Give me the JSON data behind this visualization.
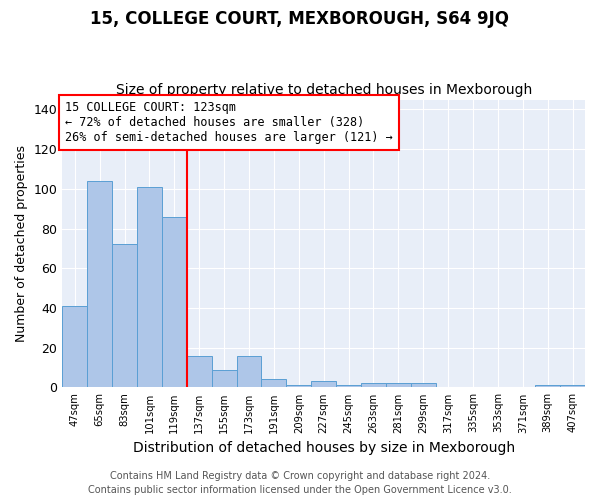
{
  "title": "15, COLLEGE COURT, MEXBOROUGH, S64 9JQ",
  "subtitle": "Size of property relative to detached houses in Mexborough",
  "xlabel": "Distribution of detached houses by size in Mexborough",
  "ylabel": "Number of detached properties",
  "categories": [
    "47sqm",
    "65sqm",
    "83sqm",
    "101sqm",
    "119sqm",
    "137sqm",
    "155sqm",
    "173sqm",
    "191sqm",
    "209sqm",
    "227sqm",
    "245sqm",
    "263sqm",
    "281sqm",
    "299sqm",
    "317sqm",
    "335sqm",
    "353sqm",
    "371sqm",
    "389sqm",
    "407sqm"
  ],
  "values": [
    41,
    104,
    72,
    101,
    86,
    16,
    9,
    16,
    4,
    1,
    3,
    1,
    2,
    2,
    2,
    0,
    0,
    0,
    0,
    1,
    1
  ],
  "bar_color": "#aec6e8",
  "bar_edge_color": "#5a9fd4",
  "red_line_x": 4.5,
  "annotation_line1": "15 COLLEGE COURT: 123sqm",
  "annotation_line2": "← 72% of detached houses are smaller (328)",
  "annotation_line3": "26% of semi-detached houses are larger (121) →",
  "ylim": [
    0,
    145
  ],
  "yticks": [
    0,
    20,
    40,
    60,
    80,
    100,
    120,
    140
  ],
  "footnote1": "Contains HM Land Registry data © Crown copyright and database right 2024.",
  "footnote2": "Contains public sector information licensed under the Open Government Licence v3.0.",
  "bg_color": "#e8eef8",
  "title_fontsize": 12,
  "subtitle_fontsize": 10,
  "xlabel_fontsize": 10,
  "ylabel_fontsize": 9,
  "footnote_fontsize": 7
}
